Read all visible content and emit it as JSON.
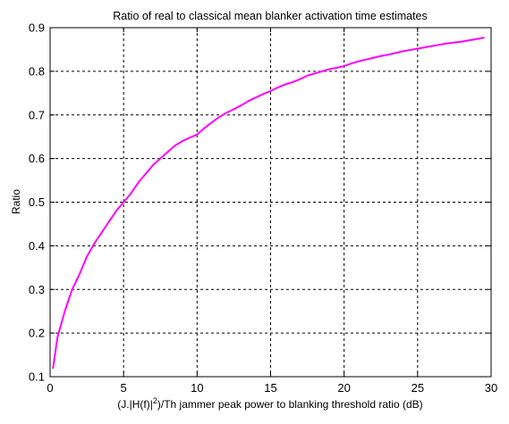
{
  "chart_data": {
    "type": "line",
    "title": "Ratio of real to classical mean blanker activation time estimates",
    "xlabel": {
      "prefix": "(J.|H(f)|",
      "superscript": "2",
      "suffix": ")/Th  jammer peak power to blanking threshold ratio (dB)"
    },
    "ylabel": "Ratio",
    "xlim": [
      0,
      30
    ],
    "ylim": [
      0.1,
      0.9
    ],
    "xticks": [
      "0",
      "5",
      "10",
      "15",
      "20",
      "25",
      "30"
    ],
    "yticks": [
      "0.1",
      "0.2",
      "0.3",
      "0.4",
      "0.5",
      "0.6",
      "0.7",
      "0.8",
      "0.9"
    ],
    "grid": true,
    "series": [
      {
        "color": "#ff00ff",
        "x": [
          0.2,
          0.5,
          1,
          1.5,
          2,
          2.5,
          3,
          3.5,
          4,
          4.5,
          5,
          5.5,
          6,
          6.5,
          7,
          7.5,
          8,
          8.5,
          9,
          9.5,
          10,
          10.5,
          11,
          11.5,
          12,
          12.5,
          13,
          13.5,
          14,
          14.5,
          15,
          15.5,
          16,
          16.5,
          17,
          17.5,
          18,
          18.5,
          19,
          19.5,
          20,
          20.5,
          21,
          21.5,
          22,
          22.5,
          23,
          23.5,
          24,
          24.5,
          25,
          25.5,
          26,
          26.5,
          27,
          27.5,
          28,
          28.5,
          29,
          29.5
        ],
        "y": [
          0.12,
          0.19,
          0.25,
          0.3,
          0.335,
          0.375,
          0.405,
          0.43,
          0.455,
          0.48,
          0.5,
          0.52,
          0.545,
          0.565,
          0.585,
          0.6,
          0.615,
          0.63,
          0.64,
          0.648,
          0.655,
          0.67,
          0.683,
          0.695,
          0.705,
          0.713,
          0.722,
          0.732,
          0.74,
          0.748,
          0.755,
          0.763,
          0.77,
          0.775,
          0.782,
          0.79,
          0.795,
          0.8,
          0.805,
          0.808,
          0.812,
          0.818,
          0.823,
          0.827,
          0.831,
          0.835,
          0.838,
          0.842,
          0.846,
          0.849,
          0.852,
          0.855,
          0.858,
          0.861,
          0.864,
          0.866,
          0.868,
          0.871,
          0.874,
          0.877
        ]
      }
    ]
  }
}
